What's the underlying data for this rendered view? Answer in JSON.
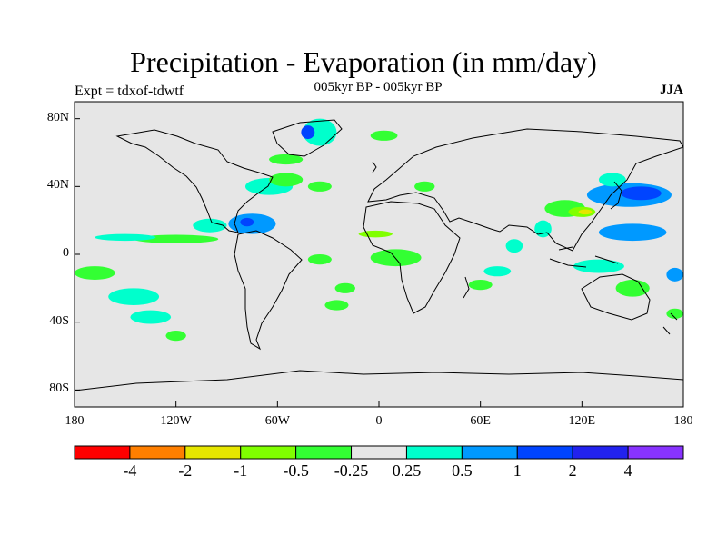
{
  "title": "Precipitation - Evaporation (in mm/day)",
  "subtitle": "005kyr BP - 005kyr BP",
  "left_string": "Expt = tdxof-tdwtf",
  "right_string": "JJA",
  "map": {
    "projection": "cylindrical-equidistant",
    "lon_range": [
      -180,
      180
    ],
    "lat_range": [
      -90,
      90
    ],
    "background_color": "#e6e6e6",
    "lat_ticks": [
      {
        "value": 80,
        "label": "80N"
      },
      {
        "value": 40,
        "label": "40N"
      },
      {
        "value": 0,
        "label": "0"
      },
      {
        "value": -40,
        "label": "40S"
      },
      {
        "value": -80,
        "label": "80S"
      }
    ],
    "lon_ticks": [
      {
        "value": -180,
        "label": "180"
      },
      {
        "value": -120,
        "label": "120W"
      },
      {
        "value": -60,
        "label": "60W"
      },
      {
        "value": 0,
        "label": "0"
      },
      {
        "value": 60,
        "label": "60E"
      },
      {
        "value": 120,
        "label": "120E"
      },
      {
        "value": 180,
        "label": "180"
      }
    ]
  },
  "colorbar": {
    "colors": [
      "#ff0000",
      "#ff7f00",
      "#e6e600",
      "#80ff00",
      "#33ff33",
      "#e6e6e6",
      "#00ffcc",
      "#0099ff",
      "#0044ff",
      "#2222ee",
      "#8833ff"
    ],
    "labels": [
      "-4",
      "-2",
      "-1",
      "-0.5",
      "-0.25",
      "0.25",
      "0.5",
      "1",
      "2",
      "4"
    ]
  },
  "regions": [
    {
      "color": "#00ffcc",
      "lon": -35,
      "lat": 72,
      "rx": 10,
      "ry": 8
    },
    {
      "color": "#0044ff",
      "lon": -42,
      "lat": 72,
      "rx": 4,
      "ry": 4
    },
    {
      "color": "#33ff33",
      "lon": 3,
      "lat": 70,
      "rx": 8,
      "ry": 3
    },
    {
      "color": "#33ff33",
      "lon": -55,
      "lat": 56,
      "rx": 10,
      "ry": 3
    },
    {
      "color": "#00ffcc",
      "lon": -65,
      "lat": 40,
      "rx": 14,
      "ry": 5
    },
    {
      "color": "#33ff33",
      "lon": -55,
      "lat": 44,
      "rx": 10,
      "ry": 4
    },
    {
      "color": "#0099ff",
      "lon": -75,
      "lat": 18,
      "rx": 14,
      "ry": 6
    },
    {
      "color": "#0044ff",
      "lon": -78,
      "lat": 19,
      "rx": 4,
      "ry": 2.5
    },
    {
      "color": "#00ffcc",
      "lon": -100,
      "lat": 17,
      "rx": 10,
      "ry": 4
    },
    {
      "color": "#33ff33",
      "lon": -120,
      "lat": 9,
      "rx": 25,
      "ry": 2.5
    },
    {
      "color": "#00ffcc",
      "lon": -150,
      "lat": 10,
      "rx": 18,
      "ry": 2
    },
    {
      "color": "#33ff33",
      "lon": -168,
      "lat": -11,
      "rx": 12,
      "ry": 4
    },
    {
      "color": "#00ffcc",
      "lon": -145,
      "lat": -25,
      "rx": 15,
      "ry": 5
    },
    {
      "color": "#00ffcc",
      "lon": -135,
      "lat": -37,
      "rx": 12,
      "ry": 4
    },
    {
      "color": "#33ff33",
      "lon": -120,
      "lat": -48,
      "rx": 6,
      "ry": 3
    },
    {
      "color": "#33ff33",
      "lon": -35,
      "lat": -3,
      "rx": 7,
      "ry": 3
    },
    {
      "color": "#33ff33",
      "lon": -20,
      "lat": -20,
      "rx": 6,
      "ry": 3
    },
    {
      "color": "#33ff33",
      "lon": -25,
      "lat": -30,
      "rx": 7,
      "ry": 3
    },
    {
      "color": "#33ff33",
      "lon": -35,
      "lat": 40,
      "rx": 7,
      "ry": 3
    },
    {
      "color": "#33ff33",
      "lon": 10,
      "lat": -2,
      "rx": 15,
      "ry": 5
    },
    {
      "color": "#80ff00",
      "lon": -2,
      "lat": 12,
      "rx": 10,
      "ry": 2
    },
    {
      "color": "#33ff33",
      "lon": 27,
      "lat": 40,
      "rx": 6,
      "ry": 3
    },
    {
      "color": "#00ffcc",
      "lon": 70,
      "lat": -10,
      "rx": 8,
      "ry": 3
    },
    {
      "color": "#33ff33",
      "lon": 60,
      "lat": -18,
      "rx": 7,
      "ry": 3
    },
    {
      "color": "#00ffcc",
      "lon": 80,
      "lat": 5,
      "rx": 5,
      "ry": 4
    },
    {
      "color": "#33ff33",
      "lon": 110,
      "lat": 27,
      "rx": 12,
      "ry": 5
    },
    {
      "color": "#80ff00",
      "lon": 120,
      "lat": 25,
      "rx": 8,
      "ry": 3
    },
    {
      "color": "#e6e600",
      "lon": 122,
      "lat": 25,
      "rx": 4,
      "ry": 1.5
    },
    {
      "color": "#00ffcc",
      "lon": 97,
      "lat": 15,
      "rx": 5,
      "ry": 5
    },
    {
      "color": "#0099ff",
      "lon": 148,
      "lat": 35,
      "rx": 25,
      "ry": 7
    },
    {
      "color": "#0044ff",
      "lon": 155,
      "lat": 36,
      "rx": 12,
      "ry": 4
    },
    {
      "color": "#00ffcc",
      "lon": 138,
      "lat": 44,
      "rx": 8,
      "ry": 4
    },
    {
      "color": "#0099ff",
      "lon": 150,
      "lat": 13,
      "rx": 20,
      "ry": 5
    },
    {
      "color": "#00ffcc",
      "lon": 130,
      "lat": -7,
      "rx": 15,
      "ry": 4
    },
    {
      "color": "#33ff33",
      "lon": 150,
      "lat": -20,
      "rx": 10,
      "ry": 5
    },
    {
      "color": "#0099ff",
      "lon": 175,
      "lat": -12,
      "rx": 5,
      "ry": 4
    },
    {
      "color": "#33ff33",
      "lon": 175,
      "lat": -35,
      "rx": 5,
      "ry": 3
    }
  ]
}
